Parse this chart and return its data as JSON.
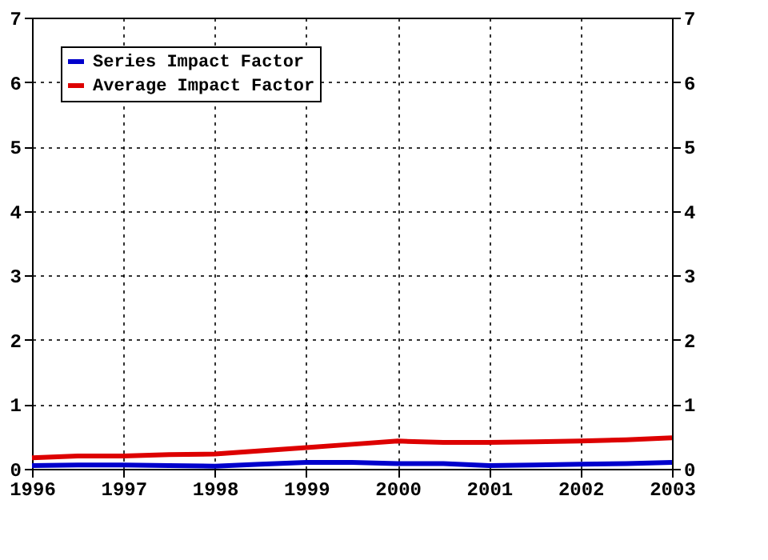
{
  "chart_data": {
    "type": "line",
    "x": [
      1996,
      1996.5,
      1997,
      1997.5,
      1998,
      1998.5,
      1999,
      1999.5,
      2000,
      2000.5,
      2001,
      2001.5,
      2002,
      2002.5,
      2003
    ],
    "series": [
      {
        "name": "Series Impact Factor",
        "color": "#0000cc",
        "values": [
          0.05,
          0.06,
          0.06,
          0.05,
          0.04,
          0.07,
          0.1,
          0.1,
          0.08,
          0.08,
          0.05,
          0.06,
          0.07,
          0.08,
          0.1
        ]
      },
      {
        "name": "Average Impact Factor",
        "color": "#dd0000",
        "values": [
          0.17,
          0.2,
          0.2,
          0.22,
          0.23,
          0.28,
          0.33,
          0.38,
          0.43,
          0.41,
          0.41,
          0.42,
          0.43,
          0.45,
          0.48
        ]
      }
    ],
    "xlim": [
      1996,
      2003
    ],
    "xticks": [
      1996,
      1997,
      1998,
      1999,
      2000,
      2001,
      2002,
      2003
    ],
    "ylim": [
      0,
      7
    ],
    "yticks": [
      0,
      1,
      2,
      3,
      4,
      5,
      6,
      7
    ],
    "y2lim": [
      0,
      7
    ],
    "y2ticks": [
      0,
      1,
      2,
      3,
      4,
      5,
      6,
      7
    ],
    "grid": true,
    "legend": "top left",
    "marker": "none",
    "line_style": "solid"
  }
}
